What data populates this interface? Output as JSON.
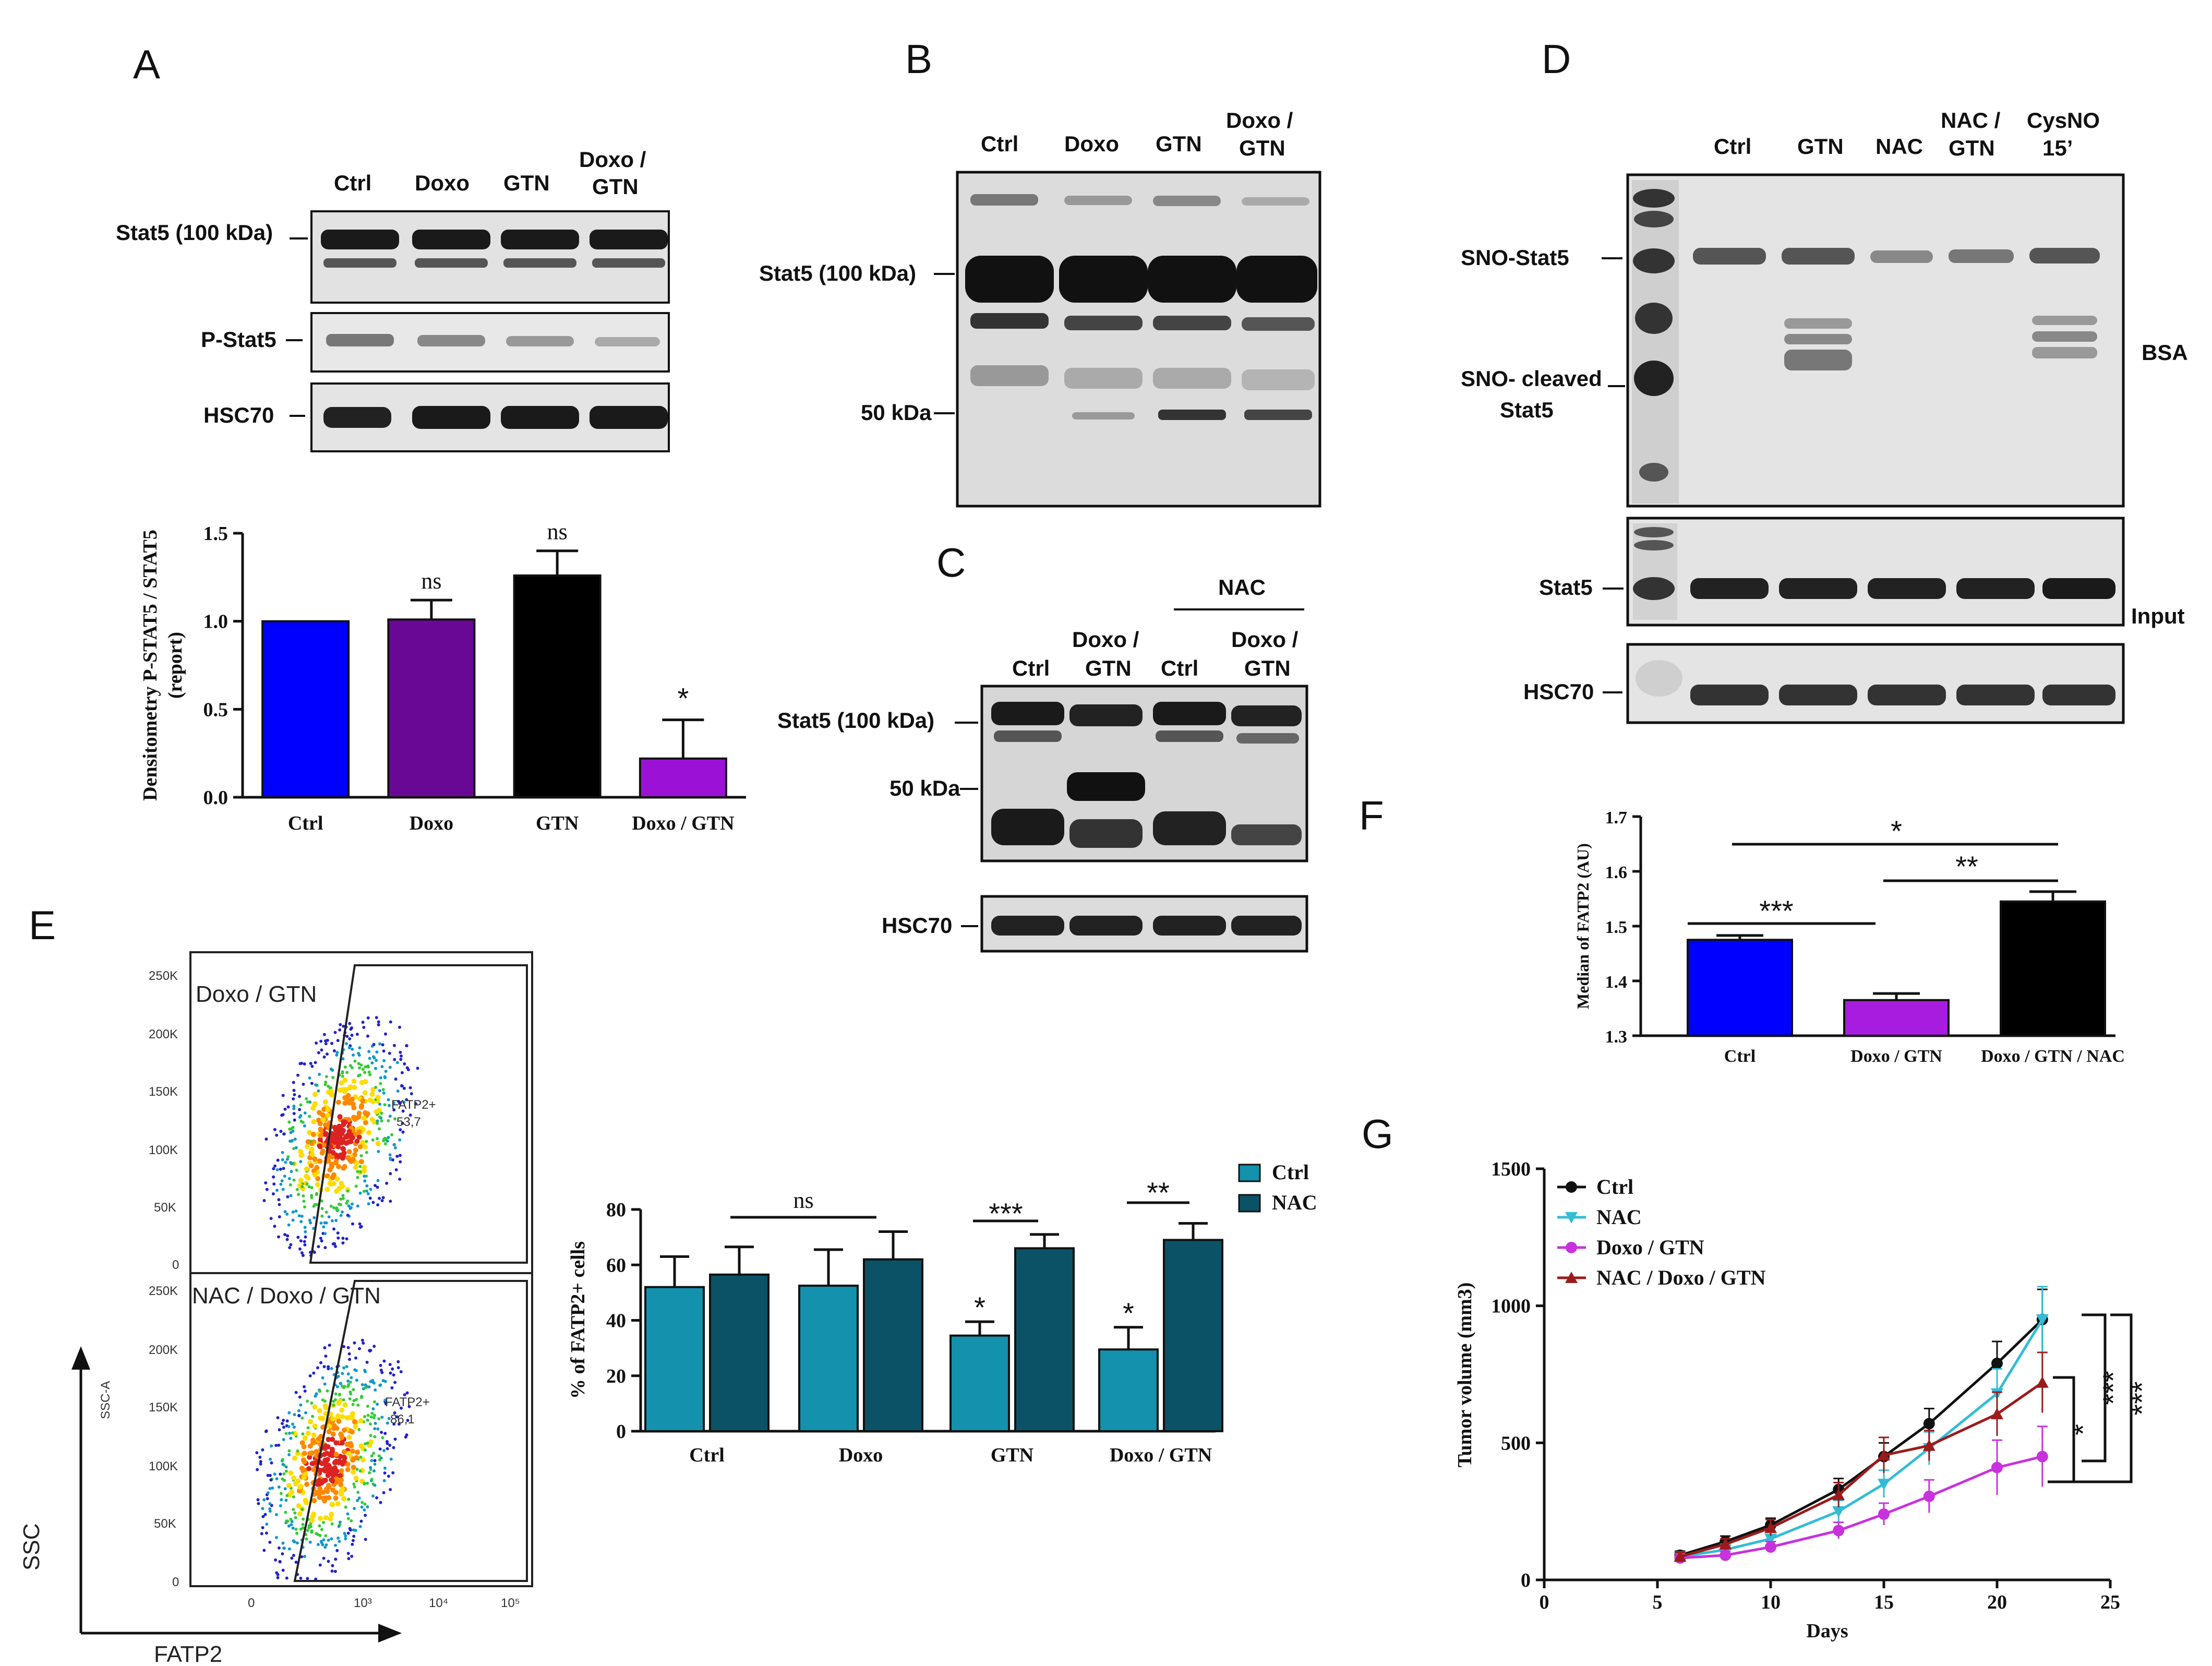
{
  "panels": {
    "A": "A",
    "B": "B",
    "C": "C",
    "D": "D",
    "E": "E",
    "F": "F",
    "G": "G"
  },
  "blotA": {
    "lanes": [
      "Ctrl",
      "Doxo",
      "GTN",
      "Doxo /",
      "GTN"
    ],
    "rows": [
      "Stat5 (100 kDa)",
      "P-Stat5",
      "HSC70"
    ]
  },
  "blotB": {
    "lanes": [
      "Ctrl",
      "Doxo",
      "GTN",
      "Doxo /",
      "GTN"
    ],
    "marks": [
      "Stat5 (100 kDa)",
      "50 kDa"
    ]
  },
  "blotC": {
    "group": "NAC",
    "lanes": [
      "Ctrl",
      "Doxo /",
      "GTN",
      "Ctrl",
      "Doxo /",
      "GTN"
    ],
    "marks": [
      "Stat5 (100 kDa)",
      "50 kDa",
      "HSC70"
    ]
  },
  "blotD": {
    "lanes": [
      "Ctrl",
      "GTN",
      "NAC",
      "NAC /",
      "GTN",
      "CysNO",
      "15’"
    ],
    "marks": [
      "SNO-Stat5",
      "SNO- cleaved",
      "Stat5",
      "Stat5",
      "HSC70"
    ],
    "side": [
      "BSA",
      "Input"
    ]
  },
  "facs": {
    "top_label": "Doxo / GTN",
    "top_gate": "FATP2+",
    "top_value": "53,7",
    "bottom_label": "NAC / Doxo / GTN",
    "bottom_gate": "FATP2+",
    "bottom_value": "86,1",
    "yticks": [
      "250K",
      "200K",
      "150K",
      "100K",
      "50K",
      "0"
    ],
    "xticks": [
      "0",
      "10³",
      "10⁴",
      "10⁵"
    ],
    "ssc_axis": "SSC-A",
    "axis_y": "SSC",
    "axis_x": "FATP2"
  },
  "chart_data": [
    {
      "id": "A",
      "type": "bar",
      "ylabel": "Densitometry P-STAT5 / STAT5",
      "ylabel2": "(report)",
      "ylim": [
        0,
        1.5
      ],
      "yticks": [
        "0.0",
        "0.5",
        "1.0",
        "1.5"
      ],
      "categories": [
        "Ctrl",
        "Doxo",
        "GTN",
        "Doxo / GTN"
      ],
      "values": [
        1.0,
        1.01,
        1.26,
        0.22
      ],
      "errors": [
        0,
        0.11,
        0.14,
        0.22
      ],
      "colors": [
        "#0000ff",
        "#6a0896",
        "#000000",
        "#9b12d6"
      ],
      "annotations": [
        "",
        "ns",
        "ns",
        "*"
      ]
    },
    {
      "id": "E",
      "type": "bar",
      "ylabel": "% of FATP2+ cells",
      "ylim": [
        0,
        80
      ],
      "yticks": [
        "0",
        "20",
        "40",
        "60",
        "80"
      ],
      "categories": [
        "Ctrl",
        "Doxo",
        "GTN",
        "Doxo / GTN"
      ],
      "series": [
        {
          "name": "Ctrl",
          "values": [
            52,
            52.5,
            34.5,
            29.5
          ],
          "errors": [
            11,
            13,
            5,
            8
          ],
          "color": "#1391ad"
        },
        {
          "name": "NAC",
          "values": [
            56.5,
            62,
            66,
            69
          ],
          "errors": [
            10,
            10,
            5,
            6
          ],
          "color": "#0b5266"
        }
      ],
      "annotations": {
        "ns": "ns",
        "gtn_pair": "***",
        "doxo_gtn_pair": "**",
        "gtn_ctrl": "*",
        "doxo_gtn_ctrl": "*"
      }
    },
    {
      "id": "F",
      "type": "bar",
      "ylabel": "Median of FATP2 (AU)",
      "ylim": [
        1.3,
        1.7
      ],
      "yticks": [
        "1.3",
        "1.4",
        "1.5",
        "1.6",
        "1.7"
      ],
      "categories": [
        "Ctrl",
        "Doxo / GTN",
        "Doxo / GTN / NAC"
      ],
      "values": [
        1.475,
        1.365,
        1.545
      ],
      "errors": [
        0.008,
        0.012,
        0.018
      ],
      "colors": [
        "#0000ff",
        "#a81ce0",
        "#000000"
      ],
      "brackets": [
        "***",
        "**",
        "*"
      ]
    },
    {
      "id": "G",
      "type": "line",
      "xlabel": "Days",
      "ylabel": "Tumor volume (mm3)",
      "xlim": [
        0,
        25
      ],
      "ylim": [
        0,
        1500
      ],
      "xticks": [
        "0",
        "5",
        "10",
        "15",
        "20",
        "25"
      ],
      "yticks": [
        "0",
        "500",
        "1000",
        "1500"
      ],
      "x": [
        6,
        8,
        10,
        13,
        15,
        17,
        20,
        22
      ],
      "series": [
        {
          "name": "Ctrl",
          "values": [
            90,
            140,
            200,
            330,
            450,
            570,
            790,
            950
          ],
          "errors": [
            15,
            20,
            25,
            40,
            50,
            55,
            80,
            110
          ],
          "color": "#111111",
          "marker": "circle"
        },
        {
          "name": "NAC",
          "values": [
            85,
            110,
            150,
            250,
            350,
            480,
            680,
            950
          ],
          "errors": [
            15,
            20,
            25,
            40,
            50,
            60,
            90,
            120
          ],
          "color": "#33bcd6",
          "marker": "tri-down"
        },
        {
          "name": "Doxo / GTN",
          "values": [
            80,
            90,
            120,
            180,
            240,
            305,
            410,
            450
          ],
          "errors": [
            10,
            15,
            20,
            30,
            40,
            60,
            100,
            110
          ],
          "color": "#c832dc",
          "marker": "circle"
        },
        {
          "name": "NAC / Doxo / GTN",
          "values": [
            85,
            130,
            190,
            310,
            455,
            490,
            605,
            720
          ],
          "errors": [
            15,
            20,
            30,
            45,
            65,
            55,
            80,
            110
          ],
          "color": "#9b1b1b",
          "marker": "tri-up"
        }
      ],
      "annotations": [
        "*",
        "***",
        "***"
      ]
    }
  ]
}
